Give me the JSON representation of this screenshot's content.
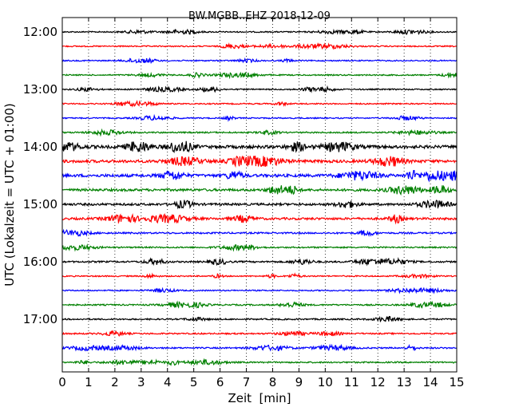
{
  "chart_data": {
    "type": "line",
    "title": "BW.MGBB..EHZ 2018-12-09",
    "xlabel": "Zeit  [min]",
    "ylabel": "UTC (Lokalzeit = UTC + 01:00)",
    "xlim": [
      0,
      15
    ],
    "x_ticks": [
      "0",
      "1",
      "2",
      "3",
      "4",
      "5",
      "6",
      "7",
      "8",
      "9",
      "10",
      "11",
      "12",
      "13",
      "14",
      "15"
    ],
    "y_ticks": [
      "12:00",
      "13:00",
      "14:00",
      "15:00",
      "16:00",
      "17:00"
    ],
    "grid": true,
    "color_cycle": [
      "#000000",
      "#ff0000",
      "#0000ff",
      "#008000"
    ],
    "series": [
      {
        "start": "12:00",
        "color": "#000000",
        "amplitude": 0.3
      },
      {
        "start": "12:15",
        "color": "#ff0000",
        "amplitude": 0.3
      },
      {
        "start": "12:30",
        "color": "#0000ff",
        "amplitude": 0.3
      },
      {
        "start": "12:45",
        "color": "#008000",
        "amplitude": 0.3
      },
      {
        "start": "13:00",
        "color": "#000000",
        "amplitude": 0.3
      },
      {
        "start": "13:15",
        "color": "#ff0000",
        "amplitude": 0.3
      },
      {
        "start": "13:30",
        "color": "#0000ff",
        "amplitude": 0.3
      },
      {
        "start": "13:45",
        "color": "#008000",
        "amplitude": 0.35
      },
      {
        "start": "14:00",
        "color": "#000000",
        "amplitude": 0.75
      },
      {
        "start": "14:15",
        "color": "#ff0000",
        "amplitude": 0.7
      },
      {
        "start": "14:30",
        "color": "#0000ff",
        "amplitude": 0.7
      },
      {
        "start": "14:45",
        "color": "#008000",
        "amplitude": 0.6
      },
      {
        "start": "15:00",
        "color": "#000000",
        "amplitude": 0.55
      },
      {
        "start": "15:15",
        "color": "#ff0000",
        "amplitude": 0.55
      },
      {
        "start": "15:30",
        "color": "#0000ff",
        "amplitude": 0.4
      },
      {
        "start": "15:45",
        "color": "#008000",
        "amplitude": 0.35
      },
      {
        "start": "16:00",
        "color": "#000000",
        "amplitude": 0.4
      },
      {
        "start": "16:15",
        "color": "#ff0000",
        "amplitude": 0.3
      },
      {
        "start": "16:30",
        "color": "#0000ff",
        "amplitude": 0.3
      },
      {
        "start": "16:45",
        "color": "#008000",
        "amplitude": 0.35
      },
      {
        "start": "17:00",
        "color": "#000000",
        "amplitude": 0.35
      },
      {
        "start": "17:15",
        "color": "#ff0000",
        "amplitude": 0.35
      },
      {
        "start": "17:30",
        "color": "#0000ff",
        "amplitude": 0.35
      },
      {
        "start": "17:45",
        "color": "#008000",
        "amplitude": 0.35
      }
    ]
  }
}
